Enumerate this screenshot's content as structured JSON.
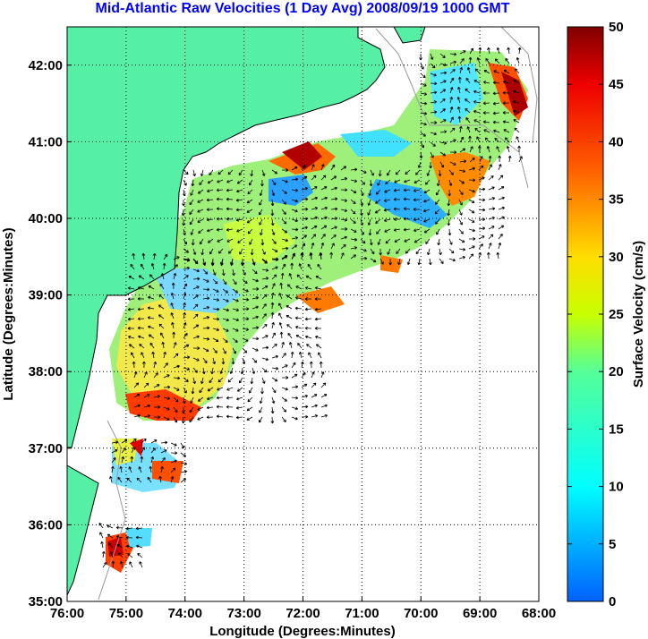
{
  "title": "Mid-Atlantic Raw Velocities (1 Day Avg) 2008/09/19 1000 GMT",
  "x_axis": {
    "label": "Longitude (Degrees:Minutes)",
    "ticks": [
      "76:00",
      "75:00",
      "74:00",
      "73:00",
      "72:00",
      "71:00",
      "70:00",
      "69:00",
      "68:00"
    ],
    "values": [
      -76,
      -75,
      -74,
      -73,
      -72,
      -71,
      -70,
      -69,
      -68
    ],
    "range": [
      -76,
      -68
    ]
  },
  "y_axis": {
    "label": "Latitude (Degrees:Minutes)",
    "ticks": [
      "35:00",
      "36:00",
      "37:00",
      "38:00",
      "39:00",
      "40:00",
      "41:00",
      "42:00"
    ],
    "values": [
      35,
      36,
      37,
      38,
      39,
      40,
      41,
      42
    ],
    "range": [
      35,
      42.5
    ]
  },
  "colorbar": {
    "label": "Surface Velocity (cm/s)",
    "ticks": [
      "0",
      "5",
      "10",
      "15",
      "20",
      "25",
      "30",
      "35",
      "40",
      "45",
      "50"
    ],
    "values": [
      0,
      5,
      10,
      15,
      20,
      25,
      30,
      35,
      40,
      45,
      50
    ],
    "range": [
      0,
      50
    ]
  },
  "colors": {
    "land": "#55f0a6",
    "water": "#ffffff",
    "title": "#0000ff",
    "grid": "#000000",
    "arrows": "#000000"
  },
  "grid": true
}
